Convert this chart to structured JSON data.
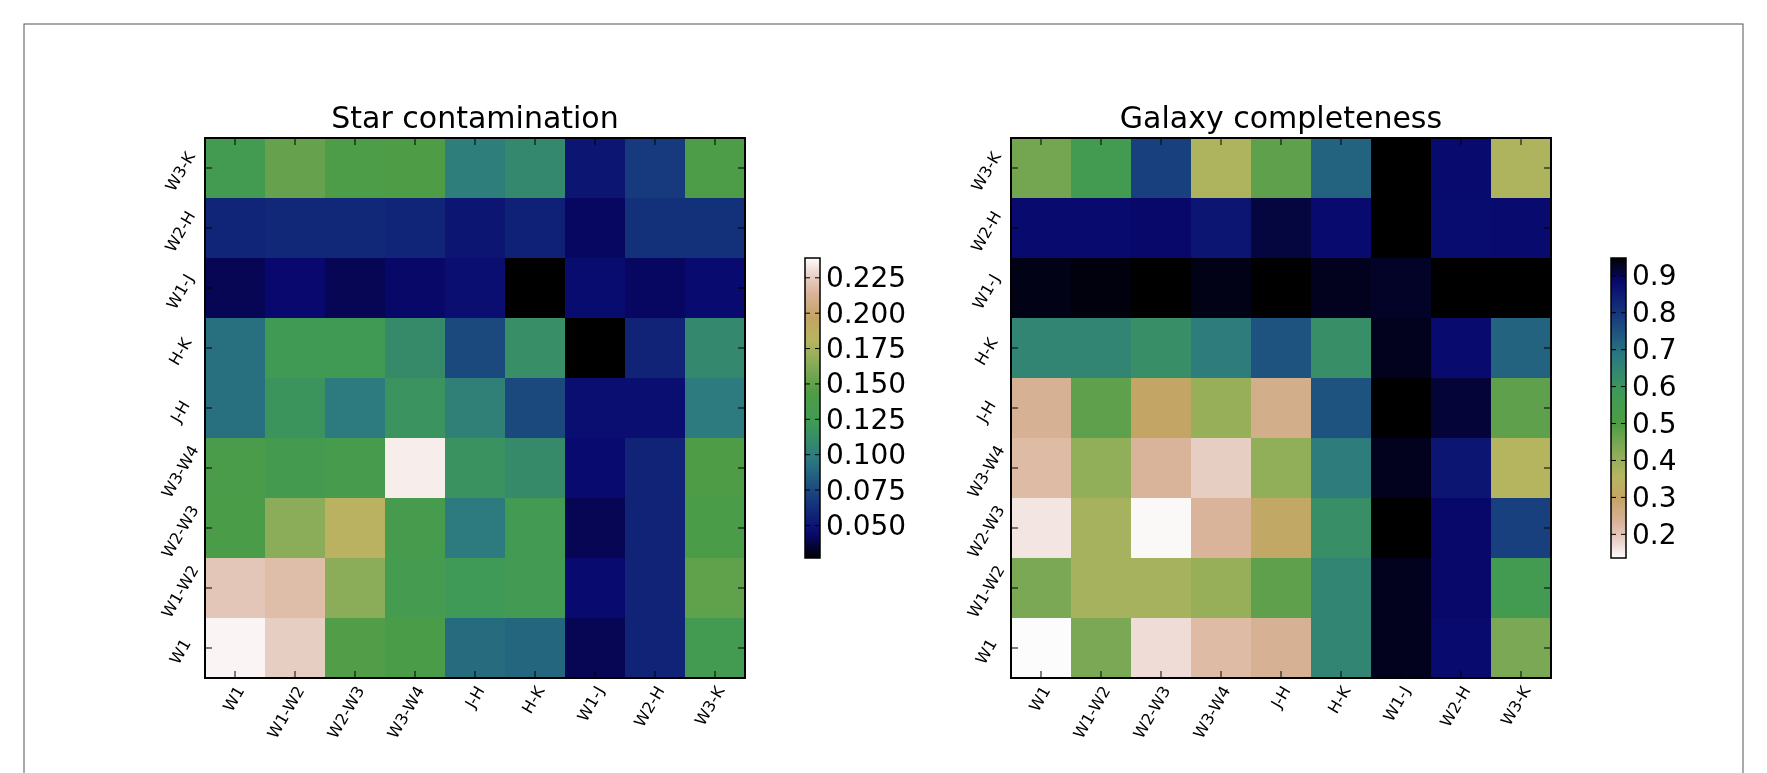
{
  "chart_data": [
    {
      "type": "heatmap",
      "title": "Star contamination",
      "categories": [
        "W1",
        "W1-W2",
        "W2-W3",
        "W3-W4",
        "J-H",
        "H-K",
        "W1-J",
        "W2-H",
        "W3-K"
      ],
      "y_categories": [
        "W3-K",
        "W2-H",
        "W1-J",
        "H-K",
        "J-H",
        "W3-W4",
        "W2-W3",
        "W1-W2",
        "W1"
      ],
      "cells": [
        [
          0.128,
          0.152,
          0.142,
          0.143,
          0.1,
          0.108,
          0.05,
          0.068,
          0.142
        ],
        [
          0.058,
          0.059,
          0.059,
          0.058,
          0.05,
          0.056,
          0.042,
          0.063,
          0.063
        ],
        [
          0.04,
          0.044,
          0.04,
          0.043,
          0.047,
          0.027,
          0.046,
          0.042,
          0.045
        ],
        [
          0.092,
          0.125,
          0.125,
          0.11,
          0.075,
          0.113,
          0.027,
          0.057,
          0.108
        ],
        [
          0.092,
          0.118,
          0.098,
          0.117,
          0.102,
          0.075,
          0.047,
          0.047,
          0.098
        ],
        [
          0.138,
          0.13,
          0.134,
          0.235,
          0.116,
          0.11,
          0.045,
          0.057,
          0.143
        ],
        [
          0.14,
          0.165,
          0.185,
          0.134,
          0.098,
          0.127,
          0.04,
          0.057,
          0.14
        ],
        [
          0.222,
          0.218,
          0.165,
          0.131,
          0.122,
          0.126,
          0.045,
          0.057,
          0.15
        ],
        [
          0.237,
          0.225,
          0.145,
          0.14,
          0.09,
          0.088,
          0.04,
          0.057,
          0.128
        ]
      ],
      "clim": [
        0.027,
        0.239
      ],
      "cticks": [
        {
          "value": 0.05,
          "label": "0.050"
        },
        {
          "value": 0.075,
          "label": "0.075"
        },
        {
          "value": 0.1,
          "label": "0.100"
        },
        0.125,
        {
          "value": 0.15,
          "label": "0.150"
        },
        0.175,
        {
          "value": 0.2,
          "label": "0.200"
        },
        0.225
      ]
    },
    {
      "type": "heatmap",
      "title": "Galaxy completeness",
      "categories": [
        "W1",
        "W1-W2",
        "W2-W3",
        "W3-W4",
        "J-H",
        "H-K",
        "W1-J",
        "W2-H",
        "W3-K"
      ],
      "y_categories": [
        "W3-K",
        "W2-H",
        "W1-J",
        "H-K",
        "J-H",
        "W3-W4",
        "W2-W3",
        "W1-W2",
        "W1"
      ],
      "cells": [
        [
          0.45,
          0.56,
          0.78,
          0.37,
          0.48,
          0.72,
          0.948,
          0.88,
          0.37
        ],
        [
          0.88,
          0.88,
          0.885,
          0.86,
          0.91,
          0.88,
          0.948,
          0.875,
          0.88
        ],
        [
          0.935,
          0.94,
          0.948,
          0.935,
          0.948,
          0.93,
          0.925,
          0.948,
          0.948
        ],
        [
          0.65,
          0.65,
          0.62,
          0.67,
          0.75,
          0.62,
          0.93,
          0.88,
          0.72
        ],
        [
          0.24,
          0.48,
          0.3,
          0.4,
          0.25,
          0.75,
          0.948,
          0.915,
          0.48
        ],
        [
          0.22,
          0.41,
          0.23,
          0.19,
          0.41,
          0.67,
          0.93,
          0.86,
          0.36
        ],
        [
          0.16,
          0.38,
          0.14,
          0.23,
          0.31,
          0.62,
          0.948,
          0.885,
          0.78
        ],
        [
          0.44,
          0.38,
          0.38,
          0.4,
          0.48,
          0.65,
          0.93,
          0.885,
          0.56
        ],
        [
          0.136,
          0.44,
          0.17,
          0.22,
          0.24,
          0.65,
          0.93,
          0.88,
          0.44
        ]
      ],
      "clim": [
        0.948,
        0.136
      ],
      "cticks": [
        0.2,
        0.3,
        0.4,
        0.5,
        0.6,
        0.7,
        0.8,
        0.9
      ]
    }
  ]
}
